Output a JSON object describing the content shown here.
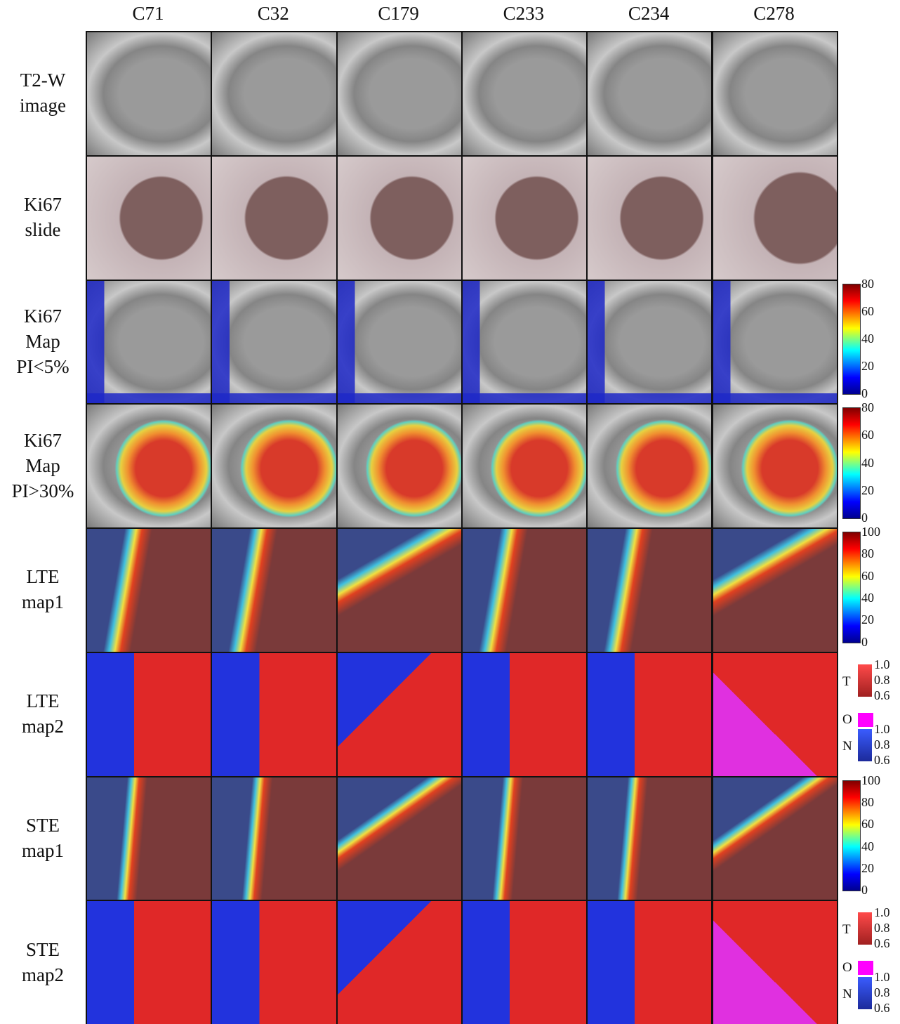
{
  "columns": [
    "C71",
    "C32",
    "C179",
    "C233",
    "C234",
    "C278"
  ],
  "rows": [
    {
      "label": [
        "T2-W",
        "image"
      ]
    },
    {
      "label": [
        "Ki67",
        "slide"
      ]
    },
    {
      "label": [
        "Ki67",
        "Map",
        "PI<5%"
      ],
      "colorbar": [
        "80",
        "60",
        "40",
        "20",
        "0"
      ]
    },
    {
      "label": [
        "Ki67",
        "Map",
        "PI>30%"
      ],
      "colorbar": [
        "80",
        "60",
        "40",
        "20",
        "0"
      ]
    },
    {
      "label": [
        "LTE",
        "map1"
      ],
      "colorbar": [
        "100",
        "80",
        "60",
        "40",
        "20",
        "0"
      ]
    },
    {
      "label": [
        "LTE",
        "map2"
      ],
      "legend": [
        {
          "key": "T",
          "ticks": [
            "1.0",
            "0.8",
            "0.6"
          ]
        },
        {
          "key": "O"
        },
        {
          "key": "N",
          "ticks": [
            "1.0",
            "0.8",
            "0.6"
          ]
        }
      ]
    },
    {
      "label": [
        "STE",
        "map1"
      ],
      "colorbar": [
        "100",
        "80",
        "60",
        "40",
        "20",
        "0"
      ]
    },
    {
      "label": [
        "STE",
        "map2"
      ],
      "legend": [
        {
          "key": "T",
          "ticks": [
            "1.0",
            "0.8",
            "0.6"
          ]
        },
        {
          "key": "O"
        },
        {
          "key": "N",
          "ticks": [
            "1.0",
            "0.8",
            "0.6"
          ]
        }
      ]
    }
  ]
}
